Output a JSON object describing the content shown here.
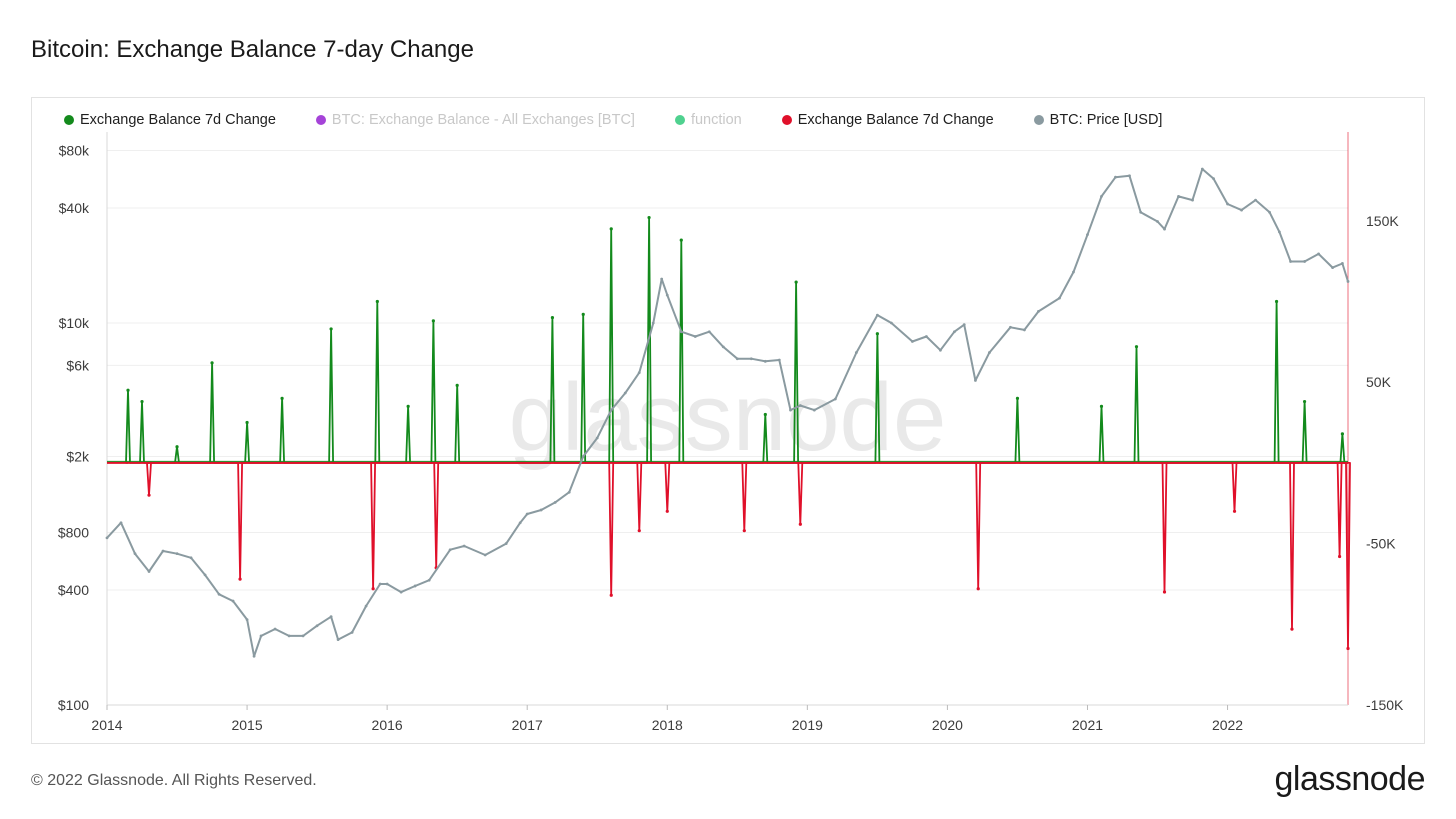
{
  "title": "Bitcoin: Exchange Balance 7-day Change",
  "legend": [
    {
      "label": "Exchange Balance 7d Change",
      "color": "#138a1c",
      "muted": false
    },
    {
      "label": "BTC: Exchange Balance - All Exchanges [BTC]",
      "color": "#a543d8",
      "muted": true
    },
    {
      "label": "function",
      "color": "#4fd18f",
      "muted": true
    },
    {
      "label": "Exchange Balance 7d Change",
      "color": "#e0102a",
      "muted": false
    },
    {
      "label": "BTC: Price [USD]",
      "color": "#8a9aa0",
      "muted": false
    }
  ],
  "footer": {
    "copyright": "© 2022 Glassnode. All Rights Reserved.",
    "brand": "glassnode"
  },
  "watermark": "glassnode",
  "chart_data": {
    "type": "line",
    "x_ticks": [
      "2014",
      "2015",
      "2016",
      "2017",
      "2018",
      "2019",
      "2020",
      "2021",
      "2022"
    ],
    "x_range": [
      2014.0,
      2022.86
    ],
    "left_axis": {
      "scale": "log",
      "range": [
        100,
        100000
      ],
      "ticks": [
        {
          "label": "$80k",
          "value": 80000
        },
        {
          "label": "$40k",
          "value": 40000
        },
        {
          "label": "$10k",
          "value": 10000
        },
        {
          "label": "$6k",
          "value": 6000
        },
        {
          "label": "$2k",
          "value": 2000
        },
        {
          "label": "$800",
          "value": 800
        },
        {
          "label": "$400",
          "value": 400
        },
        {
          "label": "$100",
          "value": 100
        }
      ]
    },
    "right_axis": {
      "scale": "linear",
      "range": [
        -150000,
        205000
      ],
      "ticks": [
        {
          "label": "150K",
          "value": 150000
        },
        {
          "label": "50K",
          "value": 50000
        },
        {
          "label": "-50K",
          "value": -50000
        },
        {
          "label": "-150K",
          "value": -150000
        }
      ]
    },
    "series": [
      {
        "name": "BTC: Price [USD]",
        "axis": "left",
        "color": "#8a9aa0",
        "points": [
          [
            2014.0,
            750
          ],
          [
            2014.1,
            900
          ],
          [
            2014.2,
            620
          ],
          [
            2014.3,
            500
          ],
          [
            2014.4,
            640
          ],
          [
            2014.5,
            620
          ],
          [
            2014.6,
            590
          ],
          [
            2014.7,
            480
          ],
          [
            2014.8,
            380
          ],
          [
            2014.9,
            350
          ],
          [
            2015.0,
            280
          ],
          [
            2015.05,
            180
          ],
          [
            2015.1,
            230
          ],
          [
            2015.2,
            250
          ],
          [
            2015.3,
            230
          ],
          [
            2015.4,
            230
          ],
          [
            2015.5,
            260
          ],
          [
            2015.6,
            290
          ],
          [
            2015.65,
            220
          ],
          [
            2015.75,
            240
          ],
          [
            2015.85,
            330
          ],
          [
            2015.95,
            430
          ],
          [
            2016.0,
            430
          ],
          [
            2016.1,
            390
          ],
          [
            2016.2,
            420
          ],
          [
            2016.3,
            450
          ],
          [
            2016.45,
            650
          ],
          [
            2016.55,
            680
          ],
          [
            2016.7,
            610
          ],
          [
            2016.85,
            700
          ],
          [
            2016.95,
            900
          ],
          [
            2017.0,
            1000
          ],
          [
            2017.1,
            1050
          ],
          [
            2017.2,
            1150
          ],
          [
            2017.3,
            1300
          ],
          [
            2017.4,
            2000
          ],
          [
            2017.5,
            2500
          ],
          [
            2017.6,
            3500
          ],
          [
            2017.7,
            4300
          ],
          [
            2017.8,
            5500
          ],
          [
            2017.9,
            10000
          ],
          [
            2017.96,
            17000
          ],
          [
            2018.0,
            14000
          ],
          [
            2018.1,
            9000
          ],
          [
            2018.2,
            8500
          ],
          [
            2018.3,
            9000
          ],
          [
            2018.4,
            7500
          ],
          [
            2018.5,
            6500
          ],
          [
            2018.6,
            6500
          ],
          [
            2018.7,
            6300
          ],
          [
            2018.8,
            6400
          ],
          [
            2018.88,
            3500
          ],
          [
            2018.95,
            3700
          ],
          [
            2019.05,
            3500
          ],
          [
            2019.2,
            4000
          ],
          [
            2019.35,
            7000
          ],
          [
            2019.5,
            11000
          ],
          [
            2019.6,
            10000
          ],
          [
            2019.75,
            8000
          ],
          [
            2019.85,
            8500
          ],
          [
            2019.95,
            7200
          ],
          [
            2020.05,
            9000
          ],
          [
            2020.12,
            9800
          ],
          [
            2020.2,
            5000
          ],
          [
            2020.3,
            7000
          ],
          [
            2020.45,
            9500
          ],
          [
            2020.55,
            9200
          ],
          [
            2020.65,
            11500
          ],
          [
            2020.8,
            13500
          ],
          [
            2020.9,
            18500
          ],
          [
            2021.0,
            29000
          ],
          [
            2021.1,
            46000
          ],
          [
            2021.2,
            58000
          ],
          [
            2021.3,
            59000
          ],
          [
            2021.38,
            38000
          ],
          [
            2021.5,
            34000
          ],
          [
            2021.55,
            31000
          ],
          [
            2021.65,
            46000
          ],
          [
            2021.75,
            44000
          ],
          [
            2021.82,
            64000
          ],
          [
            2021.9,
            57000
          ],
          [
            2022.0,
            42000
          ],
          [
            2022.1,
            39000
          ],
          [
            2022.2,
            44000
          ],
          [
            2022.3,
            38000
          ],
          [
            2022.37,
            30000
          ],
          [
            2022.45,
            21000
          ],
          [
            2022.55,
            21000
          ],
          [
            2022.65,
            23000
          ],
          [
            2022.75,
            19500
          ],
          [
            2022.82,
            20500
          ],
          [
            2022.86,
            16500
          ]
        ]
      },
      {
        "name": "Exchange Balance 7d Change",
        "axis": "right",
        "color": "#138a1c",
        "sign": "positive",
        "points": [
          [
            2014.15,
            45000
          ],
          [
            2014.25,
            38000
          ],
          [
            2014.5,
            10000
          ],
          [
            2014.75,
            62000
          ],
          [
            2015.0,
            25000
          ],
          [
            2015.25,
            40000
          ],
          [
            2015.6,
            83000
          ],
          [
            2015.93,
            100000
          ],
          [
            2016.15,
            35000
          ],
          [
            2016.33,
            88000
          ],
          [
            2016.5,
            48000
          ],
          [
            2017.18,
            90000
          ],
          [
            2017.4,
            92000
          ],
          [
            2017.6,
            145000
          ],
          [
            2017.87,
            152000
          ],
          [
            2018.1,
            138000
          ],
          [
            2018.7,
            30000
          ],
          [
            2018.92,
            112000
          ],
          [
            2019.5,
            80000
          ],
          [
            2020.5,
            40000
          ],
          [
            2021.1,
            35000
          ],
          [
            2021.35,
            72000
          ],
          [
            2022.35,
            100000
          ],
          [
            2022.55,
            38000
          ],
          [
            2022.82,
            18000
          ]
        ]
      },
      {
        "name": "Exchange Balance 7d Change",
        "axis": "right",
        "color": "#e0102a",
        "sign": "negative",
        "points": [
          [
            2014.3,
            -20000
          ],
          [
            2014.95,
            -72000
          ],
          [
            2015.9,
            -78000
          ],
          [
            2016.35,
            -65000
          ],
          [
            2017.6,
            -82000
          ],
          [
            2017.8,
            -42000
          ],
          [
            2018.0,
            -30000
          ],
          [
            2018.55,
            -42000
          ],
          [
            2018.95,
            -38000
          ],
          [
            2020.22,
            -78000
          ],
          [
            2021.55,
            -80000
          ],
          [
            2022.05,
            -30000
          ],
          [
            2022.46,
            -103000
          ],
          [
            2022.8,
            -58000
          ],
          [
            2022.86,
            -115000
          ]
        ]
      }
    ]
  }
}
